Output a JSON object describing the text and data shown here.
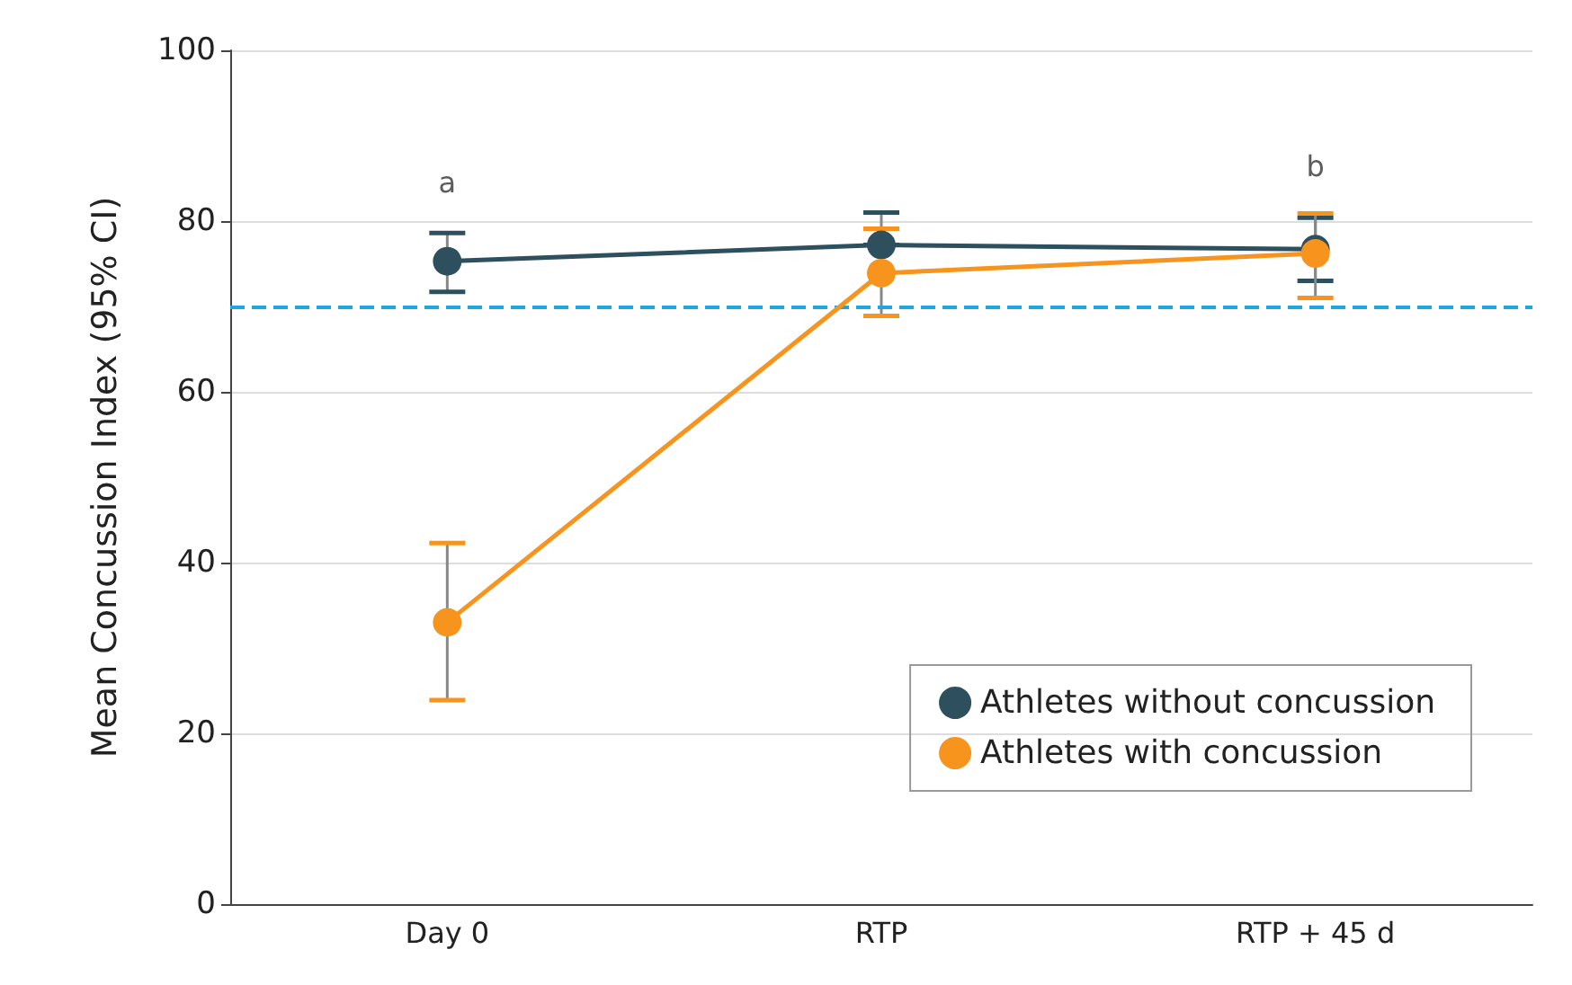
{
  "chart_data": {
    "type": "line",
    "ylabel": "Mean Concussion Index (95% CI)",
    "categories": [
      "Day 0",
      "RTP",
      "RTP + 45 d"
    ],
    "series": [
      {
        "name": "Athletes without concussion",
        "color": "#2d4f5e",
        "values": [
          75.3,
          77.2,
          76.7
        ],
        "errors": [
          [
            71.7,
            78.6
          ],
          [
            77.2,
            81.0
          ],
          [
            73.0,
            80.4
          ]
        ]
      },
      {
        "name": "Athletes with concussion",
        "color": "#f7941d",
        "values": [
          33.0,
          73.9,
          76.2
        ],
        "errors": [
          [
            23.9,
            42.3
          ],
          [
            68.9,
            79.1
          ],
          [
            71.0,
            80.9
          ]
        ]
      }
    ],
    "ylim": [
      0,
      100
    ],
    "yticks": [
      0,
      20,
      40,
      60,
      80,
      100
    ],
    "grid": "y",
    "legend": "bottom right",
    "marker": "circle",
    "line_style": "solid",
    "ref_lines": [
      {
        "axis": "y",
        "value": 70,
        "color": "#1ea6e0",
        "line_style": "dashed"
      }
    ],
    "annotations": [
      "a",
      "b"
    ]
  }
}
